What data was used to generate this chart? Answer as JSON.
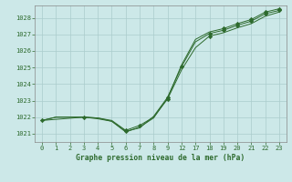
{
  "title": "Graphe pression niveau de la mer (hPa)",
  "bg_color": "#cce8e8",
  "grid_color": "#aacccc",
  "line_color": "#2d6a2d",
  "marker_color": "#2d6a2d",
  "ylim": [
    1020.5,
    1028.75
  ],
  "y_ticks": [
    1021,
    1022,
    1023,
    1024,
    1025,
    1026,
    1027,
    1028
  ],
  "x_labels": [
    "0",
    "1",
    "2",
    "3",
    "4",
    "5",
    "6",
    "7",
    "8",
    "9",
    "12",
    "17",
    "18",
    "19",
    "20",
    "21",
    "22",
    "23"
  ],
  "series1_x": [
    0,
    1,
    2,
    3,
    4,
    5,
    6,
    7,
    8,
    9,
    10,
    11,
    12,
    13,
    14,
    15,
    16,
    17
  ],
  "series1_y": [
    1021.8,
    1022.0,
    1022.0,
    1022.0,
    1021.9,
    1021.75,
    1021.15,
    1021.35,
    1022.05,
    1023.2,
    1025.05,
    1026.55,
    1027.05,
    1027.25,
    1027.55,
    1027.8,
    1028.25,
    1028.45
  ],
  "series2_x": [
    0,
    1,
    2,
    3,
    4,
    5,
    6,
    7,
    8,
    9,
    10,
    11,
    12,
    13,
    14,
    15,
    16,
    17
  ],
  "series2_y": [
    1021.8,
    1022.0,
    1022.0,
    1022.0,
    1021.95,
    1021.8,
    1021.2,
    1021.5,
    1022.0,
    1023.1,
    1024.85,
    1026.2,
    1026.9,
    1027.1,
    1027.4,
    1027.65,
    1028.1,
    1028.35
  ],
  "series3_x": [
    0,
    3,
    4,
    5,
    6,
    7,
    8,
    9,
    10,
    11,
    12,
    13,
    14,
    15,
    16,
    17
  ],
  "series3_y": [
    1021.8,
    1022.0,
    1021.95,
    1021.75,
    1021.1,
    1021.4,
    1021.95,
    1023.15,
    1025.15,
    1026.7,
    1027.15,
    1027.35,
    1027.65,
    1027.9,
    1028.35,
    1028.55
  ],
  "markers1_x": [
    0,
    3,
    6,
    9,
    10,
    12,
    13,
    14,
    15,
    16,
    17
  ],
  "markers1_y": [
    1021.8,
    1022.0,
    1021.2,
    1023.1,
    1025.05,
    1026.9,
    1027.25,
    1027.55,
    1027.8,
    1028.25,
    1028.45
  ],
  "markers2_x": [
    6,
    7,
    9,
    12,
    13,
    14,
    15,
    16,
    17
  ],
  "markers2_y": [
    1021.15,
    1021.5,
    1023.2,
    1027.05,
    1027.35,
    1027.65,
    1027.9,
    1028.35,
    1028.55
  ]
}
